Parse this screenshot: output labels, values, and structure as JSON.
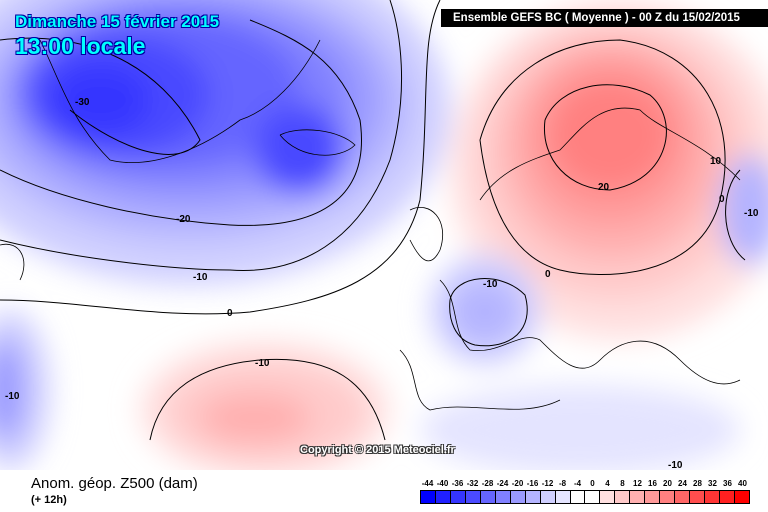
{
  "header": {
    "date": "Dimanche 15 février 2015",
    "time": "13:00 locale",
    "run": "Ensemble GEFS BC ( Moyenne )  -  00 Z du 15/02/2015"
  },
  "copyright": "Copyright © 2015 Meteociel.fr",
  "footer": {
    "title": "Anom. géop. Z500 (dam)",
    "subtitle": "(+ 12h)"
  },
  "colorbar": {
    "labels": [
      "-44",
      "-40",
      "-36",
      "-32",
      "-28",
      "-24",
      "-20",
      "-16",
      "-12",
      "-8",
      "-4",
      "0",
      "4",
      "8",
      "12",
      "16",
      "20",
      "24",
      "28",
      "32",
      "36",
      "40"
    ],
    "colors": [
      "#0000ff",
      "#2020ff",
      "#3535ff",
      "#4a4aff",
      "#6565ff",
      "#8080ff",
      "#9a9aff",
      "#b4b4ff",
      "#cfcfff",
      "#e4e4ff",
      "#ffffff",
      "#ffffff",
      "#ffe0e0",
      "#ffcaca",
      "#ffb0b0",
      "#ff9a9a",
      "#ff8080",
      "#ff6666",
      "#ff4d4d",
      "#ff3535",
      "#ff2020",
      "#ff0000"
    ]
  },
  "contour_labels": [
    "-30",
    "-20",
    "-10",
    "0",
    "-10",
    "-10",
    "-10",
    "0",
    "20",
    "10",
    "0",
    "-10",
    "-10"
  ]
}
